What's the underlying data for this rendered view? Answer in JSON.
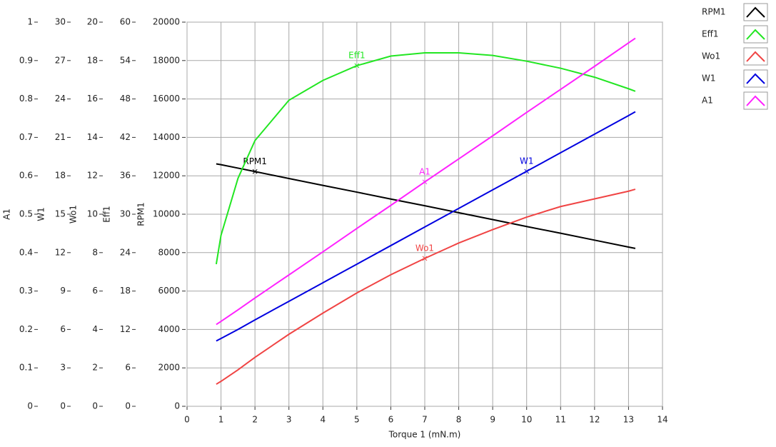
{
  "chart_data": {
    "type": "line",
    "x_label": "Torque 1 (mN.m)",
    "xlim": [
      0,
      14
    ],
    "xticks": [
      0,
      1,
      2,
      3,
      4,
      5,
      6,
      7,
      8,
      9,
      10,
      11,
      12,
      13,
      14
    ],
    "grid": true,
    "legend": "top-right",
    "axes": [
      {
        "label": "A1",
        "ylim": [
          0,
          1
        ],
        "yticks": [
          0,
          0.1,
          0.2,
          0.3,
          0.4,
          0.5,
          0.6,
          0.7,
          0.8,
          0.9,
          1
        ]
      },
      {
        "label": "W1",
        "ylim": [
          0,
          30
        ],
        "yticks": [
          0,
          3,
          6,
          9,
          12,
          15,
          18,
          21,
          24,
          27,
          30
        ]
      },
      {
        "label": "Wo1",
        "ylim": [
          0,
          20
        ],
        "yticks": [
          0,
          2,
          4,
          6,
          8,
          10,
          12,
          14,
          16,
          18,
          20
        ]
      },
      {
        "label": "Eff1",
        "ylim": [
          0,
          60
        ],
        "yticks": [
          0,
          6,
          12,
          18,
          24,
          30,
          36,
          42,
          48,
          54,
          60
        ]
      },
      {
        "label": "RPM1",
        "ylim": [
          0,
          20000
        ],
        "yticks": [
          0,
          2000,
          4000,
          6000,
          8000,
          10000,
          12000,
          14000,
          16000,
          18000,
          20000
        ]
      }
    ],
    "x": [
      0.86,
      1,
      1.5,
      2,
      3,
      4,
      5,
      6,
      7,
      8,
      9,
      10,
      11,
      12,
      13,
      13.2
    ],
    "series": [
      {
        "name": "RPM1",
        "color": "#000000",
        "axis": 4,
        "values": [
          12620,
          12580,
          12400,
          12220,
          11860,
          11500,
          11150,
          10790,
          10440,
          10080,
          9720,
          9360,
          9010,
          8650,
          8290,
          8220
        ]
      },
      {
        "name": "Eff1",
        "color": "#22e622",
        "axis": 3,
        "values": [
          22.2,
          26.7,
          35.6,
          41.5,
          47.8,
          50.9,
          53.2,
          54.7,
          55.2,
          55.2,
          54.8,
          53.9,
          52.8,
          51.4,
          49.6,
          49.2
        ]
      },
      {
        "name": "Wo1",
        "color": "#f04444",
        "axis": 2,
        "values": [
          1.15,
          1.3,
          1.9,
          2.55,
          3.75,
          4.85,
          5.9,
          6.85,
          7.7,
          8.5,
          9.2,
          9.85,
          10.4,
          10.8,
          11.2,
          11.3
        ]
      },
      {
        "name": "W1",
        "color": "#0000e0",
        "axis": 1,
        "values": [
          5.1,
          5.3,
          6.0,
          6.75,
          8.2,
          9.65,
          11.1,
          12.55,
          14.0,
          15.45,
          16.9,
          18.35,
          19.8,
          21.25,
          22.7,
          23.0
        ]
      },
      {
        "name": "A1",
        "color": "#ff22ff",
        "axis": 0,
        "values": [
          0.213,
          0.221,
          0.251,
          0.282,
          0.342,
          0.402,
          0.463,
          0.523,
          0.584,
          0.644,
          0.704,
          0.765,
          0.825,
          0.885,
          0.946,
          0.958
        ]
      }
    ]
  }
}
